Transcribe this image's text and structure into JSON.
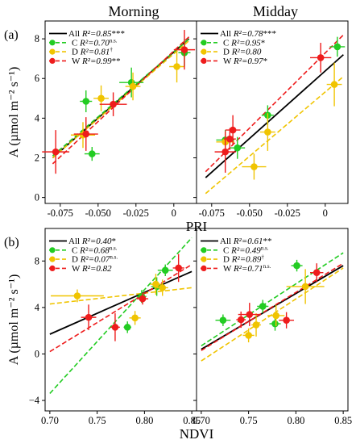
{
  "columns": [
    "Morning",
    "Midday"
  ],
  "colors": {
    "All": "#000000",
    "C": "#22cc22",
    "D": "#f0c400",
    "W": "#ee1c1c"
  },
  "chart_data": [
    {
      "type": "scatter",
      "panel_letter": "(a)",
      "column": "Morning",
      "xlabel": "PRI",
      "ylabel": "A (µmol m⁻² s⁻¹)",
      "xlim": [
        -0.085,
        0.015
      ],
      "ylim": [
        -0.3,
        8.9
      ],
      "xticks": [
        -0.075,
        -0.05,
        -0.025,
        0
      ],
      "xtick_labels": [
        "-0.075",
        "-0.050",
        "-0.025",
        "0"
      ],
      "yticks": [
        0,
        2,
        4,
        6,
        8
      ],
      "ytick_labels": [
        "0",
        "2",
        "4",
        "6",
        "8"
      ],
      "show_xtick_labels": true,
      "show_ytick_labels": true,
      "legend": [
        {
          "group": "All",
          "label": "All",
          "r2": "R²=0.85",
          "sig": "***",
          "sig_sup": false
        },
        {
          "group": "C",
          "label": "C",
          "r2": "R²=0.70",
          "sig": "n.s.",
          "sig_sup": true
        },
        {
          "group": "D",
          "label": "D",
          "r2": "R²=0.81",
          "sig": "†",
          "sig_sup": true
        },
        {
          "group": "W",
          "label": "W",
          "r2": "R²=0.99",
          "sig": "**",
          "sig_sup": false
        }
      ],
      "lines": [
        {
          "group": "All",
          "x": [
            -0.08,
            0.01
          ],
          "y": [
            2.0,
            8.0
          ]
        },
        {
          "group": "C",
          "x": [
            -0.08,
            0.01
          ],
          "y": [
            2.1,
            8.0
          ]
        },
        {
          "group": "D",
          "x": [
            -0.08,
            0.01
          ],
          "y": [
            2.0,
            7.9
          ]
        },
        {
          "group": "W",
          "x": [
            -0.08,
            0.01
          ],
          "y": [
            1.7,
            8.1
          ]
        }
      ],
      "points": [
        {
          "group": "C",
          "x": -0.058,
          "y": 4.85,
          "xerr": 0.004,
          "yerr": 0.55
        },
        {
          "group": "C",
          "x": -0.054,
          "y": 2.2,
          "xerr": 0.005,
          "yerr": 0.35
        },
        {
          "group": "C",
          "x": -0.028,
          "y": 5.8,
          "xerr": 0.008,
          "yerr": 0.75
        },
        {
          "group": "C",
          "x": 0.007,
          "y": 7.3,
          "xerr": 0.004,
          "yerr": 0.7
        },
        {
          "group": "D",
          "x": -0.06,
          "y": 3.15,
          "xerr": 0.008,
          "yerr": 0.65
        },
        {
          "group": "D",
          "x": -0.048,
          "y": 5.0,
          "xerr": 0.005,
          "yerr": 0.65
        },
        {
          "group": "D",
          "x": -0.027,
          "y": 5.6,
          "xerr": 0.005,
          "yerr": 0.7
        },
        {
          "group": "D",
          "x": 0.002,
          "y": 6.6,
          "xerr": 0.005,
          "yerr": 0.8
        },
        {
          "group": "W",
          "x": -0.078,
          "y": 2.3,
          "xerr": 0.009,
          "yerr": 1.1
        },
        {
          "group": "W",
          "x": -0.058,
          "y": 3.2,
          "xerr": 0.008,
          "yerr": 0.85
        },
        {
          "group": "W",
          "x": -0.04,
          "y": 4.7,
          "xerr": 0.009,
          "yerr": 0.6
        },
        {
          "group": "W",
          "x": 0.007,
          "y": 7.45,
          "xerr": 0.007,
          "yerr": 1.0
        }
      ]
    },
    {
      "type": "scatter",
      "panel_letter": "",
      "column": "Midday",
      "xlabel": "",
      "ylabel": "",
      "xlim": [
        -0.085,
        0.015
      ],
      "ylim": [
        -0.3,
        8.9
      ],
      "xticks": [
        -0.075,
        -0.05,
        -0.025,
        0
      ],
      "xtick_labels": [
        "-0.075",
        "-0.050",
        "-0.025",
        "0"
      ],
      "yticks": [
        0,
        2,
        4,
        6,
        8
      ],
      "ytick_labels": [],
      "show_xtick_labels": true,
      "show_ytick_labels": false,
      "legend": [
        {
          "group": "All",
          "label": "All",
          "r2": "R²=0.78",
          "sig": "***",
          "sig_sup": false
        },
        {
          "group": "C",
          "label": "C",
          "r2": "R²=0.95",
          "sig": "*",
          "sig_sup": false
        },
        {
          "group": "D",
          "label": "D",
          "r2": "R²=0.80",
          "sig": "",
          "sig_sup": false
        },
        {
          "group": "W",
          "label": "W",
          "r2": "R²=0.97",
          "sig": "*",
          "sig_sup": false
        }
      ],
      "lines": [
        {
          "group": "All",
          "x": [
            -0.079,
            0.012
          ],
          "y": [
            1.0,
            7.2
          ]
        },
        {
          "group": "C",
          "x": 0,
          "y": 0
        },
        {
          "group": "D",
          "x": [
            -0.079,
            0.012
          ],
          "y": [
            0.2,
            6.1
          ]
        },
        {
          "group": "W",
          "x": [
            -0.079,
            0.012
          ],
          "y": [
            1.3,
            8.2
          ]
        }
      ],
      "points": [
        {
          "group": "C",
          "x": -0.066,
          "y": 2.9,
          "xerr": 0.006,
          "yerr": 0.5
        },
        {
          "group": "C",
          "x": -0.058,
          "y": 2.5,
          "xerr": 0.005,
          "yerr": 0.55
        },
        {
          "group": "C",
          "x": -0.038,
          "y": 4.15,
          "xerr": 0.004,
          "yerr": 0.5
        },
        {
          "group": "C",
          "x": 0.008,
          "y": 7.6,
          "xerr": 0.005,
          "yerr": 0.5
        },
        {
          "group": "D",
          "x": -0.066,
          "y": 2.8,
          "xerr": 0.006,
          "yerr": 0.5
        },
        {
          "group": "D",
          "x": -0.047,
          "y": 1.55,
          "xerr": 0.008,
          "yerr": 0.65
        },
        {
          "group": "D",
          "x": -0.038,
          "y": 3.3,
          "xerr": 0.005,
          "yerr": 0.95
        },
        {
          "group": "D",
          "x": 0.006,
          "y": 5.7,
          "xerr": 0.005,
          "yerr": 1.1
        },
        {
          "group": "W",
          "x": -0.066,
          "y": 2.3,
          "xerr": 0.007,
          "yerr": 1.05
        },
        {
          "group": "W",
          "x": -0.061,
          "y": 3.4,
          "xerr": 0.005,
          "yerr": 0.75
        },
        {
          "group": "W",
          "x": -0.063,
          "y": 2.95,
          "xerr": 0.004,
          "yerr": 0.55
        },
        {
          "group": "W",
          "x": -0.003,
          "y": 7.05,
          "xerr": 0.007,
          "yerr": 0.75
        }
      ]
    },
    {
      "type": "scatter",
      "panel_letter": "(b)",
      "column": "Morning",
      "xlabel": "NDVI",
      "ylabel": "A (µmol m⁻² s⁻¹)",
      "xlim": [
        0.695,
        0.855
      ],
      "ylim": [
        -4.9,
        10.8
      ],
      "xticks": [
        0.7,
        0.75,
        0.8,
        0.85
      ],
      "xtick_labels": [
        "0.70",
        "0.75",
        "0.80",
        "0.85"
      ],
      "yticks": [
        -4,
        0,
        4,
        8
      ],
      "ytick_labels": [
        "−4",
        "0",
        "4",
        "8"
      ],
      "show_xtick_labels": true,
      "show_ytick_labels": true,
      "legend": [
        {
          "group": "All",
          "label": "All",
          "r2": "R²=0.40",
          "sig": "*",
          "sig_sup": false
        },
        {
          "group": "C",
          "label": "C",
          "r2": "R²=0.68",
          "sig": "n.s.",
          "sig_sup": true
        },
        {
          "group": "D",
          "label": "D",
          "r2": "R²=0.07",
          "sig": "n.s.",
          "sig_sup": true
        },
        {
          "group": "W",
          "label": "W",
          "r2": "R²=0.82",
          "sig": "",
          "sig_sup": false
        }
      ],
      "lines": [
        {
          "group": "All",
          "x": [
            0.7,
            0.85
          ],
          "y": [
            1.7,
            7.1
          ]
        },
        {
          "group": "C",
          "x": [
            0.7,
            0.85
          ],
          "y": [
            -3.4,
            10.0
          ]
        },
        {
          "group": "D",
          "x": [
            0.7,
            0.85
          ],
          "y": [
            4.3,
            5.7
          ]
        },
        {
          "group": "W",
          "x": [
            0.7,
            0.85
          ],
          "y": [
            0.2,
            7.7
          ]
        }
      ],
      "points": [
        {
          "group": "C",
          "x": 0.782,
          "y": 2.3,
          "xerr": 0.004,
          "yerr": 0.5
        },
        {
          "group": "C",
          "x": 0.797,
          "y": 4.95,
          "xerr": 0.005,
          "yerr": 0.55
        },
        {
          "group": "C",
          "x": 0.813,
          "y": 5.8,
          "xerr": 0.006,
          "yerr": 0.8
        },
        {
          "group": "C",
          "x": 0.822,
          "y": 7.2,
          "xerr": 0.008,
          "yerr": 0.5
        },
        {
          "group": "D",
          "x": 0.729,
          "y": 5.0,
          "xerr": 0.028,
          "yerr": 0.55
        },
        {
          "group": "D",
          "x": 0.79,
          "y": 3.1,
          "xerr": 0.006,
          "yerr": 0.6
        },
        {
          "group": "D",
          "x": 0.812,
          "y": 6.0,
          "xerr": 0.006,
          "yerr": 0.9
        },
        {
          "group": "D",
          "x": 0.819,
          "y": 5.7,
          "xerr": 0.006,
          "yerr": 0.7
        },
        {
          "group": "W",
          "x": 0.741,
          "y": 3.15,
          "xerr": 0.008,
          "yerr": 1.1
        },
        {
          "group": "W",
          "x": 0.769,
          "y": 2.3,
          "xerr": 0.005,
          "yerr": 1.2
        },
        {
          "group": "W",
          "x": 0.798,
          "y": 4.75,
          "xerr": 0.006,
          "yerr": 0.5
        },
        {
          "group": "W",
          "x": 0.836,
          "y": 7.4,
          "xerr": 0.006,
          "yerr": 1.2
        }
      ]
    },
    {
      "type": "scatter",
      "panel_letter": "",
      "column": "Midday",
      "xlabel": "",
      "ylabel": "",
      "xlim": [
        0.695,
        0.855
      ],
      "ylim": [
        -4.9,
        10.8
      ],
      "xticks": [
        0.7,
        0.75,
        0.8,
        0.85
      ],
      "xtick_labels": [
        "0.70",
        "0.75",
        "0.80",
        "0.85"
      ],
      "yticks": [
        -4,
        0,
        4,
        8
      ],
      "ytick_labels": [],
      "show_xtick_labels": true,
      "show_ytick_labels": false,
      "legend": [
        {
          "group": "All",
          "label": "All",
          "r2": "R²=0.61",
          "sig": "**",
          "sig_sup": false
        },
        {
          "group": "C",
          "label": "C",
          "r2": "R²=0.49",
          "sig": "n.s.",
          "sig_sup": true
        },
        {
          "group": "D",
          "label": "D",
          "r2": "R²=0.89",
          "sig": "†",
          "sig_sup": true
        },
        {
          "group": "W",
          "label": "W",
          "r2": "R²=0.71",
          "sig": "n.s.",
          "sig_sup": true
        }
      ],
      "lines": [
        {
          "group": "All",
          "x": [
            0.7,
            0.85
          ],
          "y": [
            0.4,
            7.6
          ]
        },
        {
          "group": "C",
          "x": [
            0.7,
            0.85
          ],
          "y": [
            0.7,
            8.7
          ]
        },
        {
          "group": "D",
          "x": [
            0.7,
            0.85
          ],
          "y": [
            -0.6,
            7.4
          ]
        },
        {
          "group": "W",
          "x": [
            0.7,
            0.85
          ],
          "y": [
            0.3,
            7.8
          ]
        }
      ],
      "points": [
        {
          "group": "C",
          "x": 0.723,
          "y": 2.9,
          "xerr": 0.008,
          "yerr": 0.5
        },
        {
          "group": "C",
          "x": 0.765,
          "y": 4.1,
          "xerr": 0.006,
          "yerr": 0.55
        },
        {
          "group": "C",
          "x": 0.778,
          "y": 2.6,
          "xerr": 0.006,
          "yerr": 0.6
        },
        {
          "group": "C",
          "x": 0.801,
          "y": 7.6,
          "xerr": 0.006,
          "yerr": 0.5
        },
        {
          "group": "D",
          "x": 0.75,
          "y": 1.6,
          "xerr": 0.006,
          "yerr": 0.6
        },
        {
          "group": "D",
          "x": 0.758,
          "y": 2.5,
          "xerr": 0.005,
          "yerr": 1.0
        },
        {
          "group": "D",
          "x": 0.779,
          "y": 3.3,
          "xerr": 0.009,
          "yerr": 0.9
        },
        {
          "group": "D",
          "x": 0.81,
          "y": 5.8,
          "xerr": 0.02,
          "yerr": 1.5
        },
        {
          "group": "W",
          "x": 0.742,
          "y": 2.95,
          "xerr": 0.005,
          "yerr": 0.7
        },
        {
          "group": "W",
          "x": 0.751,
          "y": 3.4,
          "xerr": 0.012,
          "yerr": 1.0
        },
        {
          "group": "W",
          "x": 0.79,
          "y": 2.9,
          "xerr": 0.008,
          "yerr": 0.7
        },
        {
          "group": "W",
          "x": 0.822,
          "y": 7.0,
          "xerr": 0.007,
          "yerr": 0.8
        }
      ]
    }
  ]
}
